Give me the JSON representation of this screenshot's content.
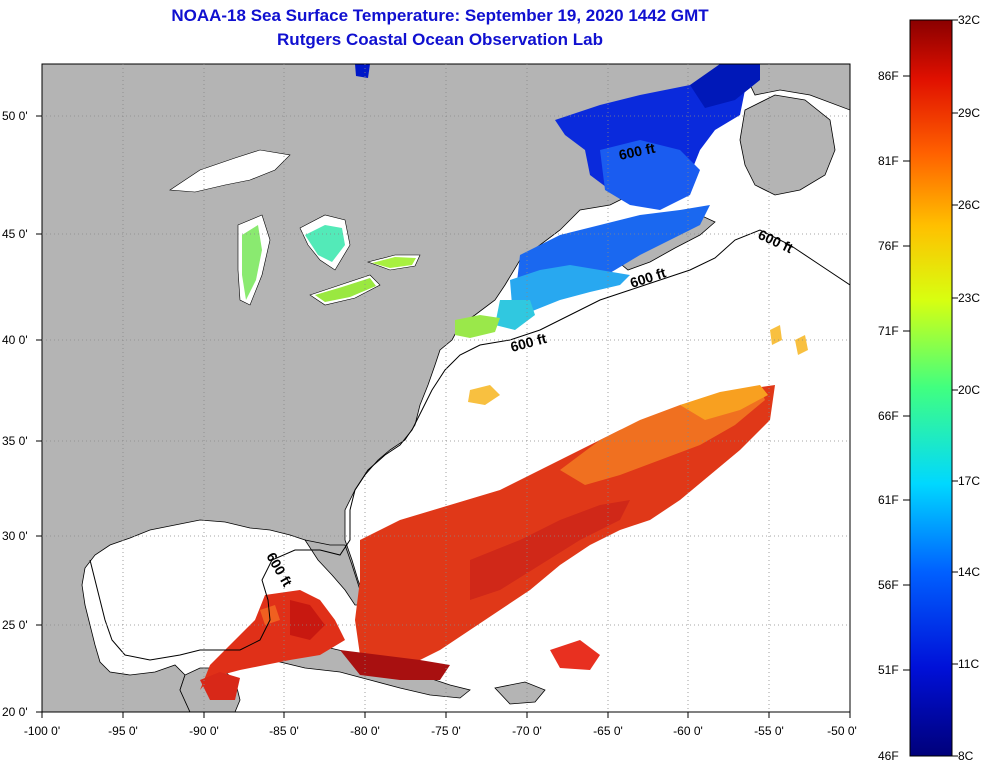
{
  "header": {
    "title": "NOAA-18 Sea Surface Temperature:  September 19, 2020 1442 GMT",
    "subtitle": "Rutgers Coastal Ocean Observation Lab"
  },
  "map": {
    "lon_ticks": [
      "-100 0'",
      "-95 0'",
      "-90 0'",
      "-85 0'",
      "-80 0'",
      "-75 0'",
      "-70 0'",
      "-65 0'",
      "-60 0'",
      "-55 0'",
      "-50 0'"
    ],
    "lat_ticks": [
      "50 0'",
      "45 0'",
      "40 0'",
      "35 0'",
      "30 0'",
      "25 0'",
      "20 0'"
    ],
    "depth_contour_label": "600 ft",
    "land_color": "#b4b4b4"
  },
  "colorbar": {
    "fahrenheit_labels": [
      "86F",
      "81F",
      "76F",
      "71F",
      "66F",
      "61F",
      "56F",
      "51F",
      "46F"
    ],
    "celsius_labels": [
      "32C",
      "29C",
      "26C",
      "23C",
      "20C",
      "17C",
      "14C",
      "11C",
      "8C"
    ]
  }
}
